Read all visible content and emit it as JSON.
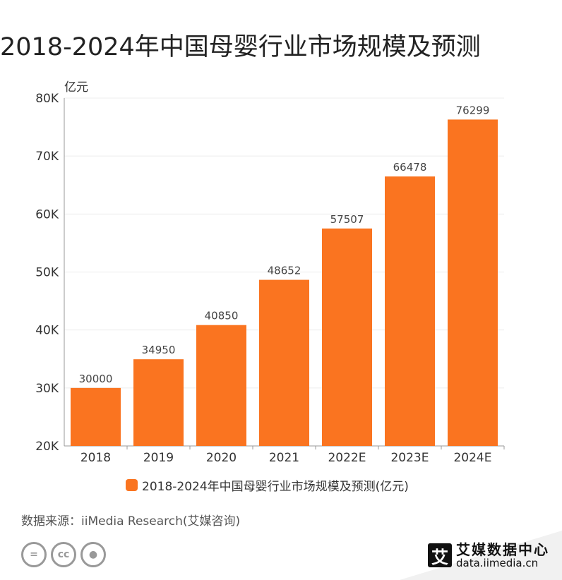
{
  "title": "2018-2024年中国母婴行业市场规模及预测",
  "source": "数据来源：iiMedia Research(艾媒咨询)",
  "logo": {
    "mark": "艾",
    "name": "艾媒数据中心",
    "url": "data.iimedia.cn"
  },
  "colors": {
    "bar": "#fa7420",
    "grid": "#ececec",
    "axis": "#999999"
  },
  "chart_data": {
    "type": "bar",
    "categories": [
      "2018",
      "2019",
      "2020",
      "2021",
      "2022E",
      "2023E",
      "2024E"
    ],
    "series": [
      {
        "name": "2018-2024年中国母婴行业市场规模及预测(亿元)",
        "values": [
          30000,
          34950,
          40850,
          48652,
          57507,
          66478,
          76299
        ]
      }
    ],
    "data_labels": [
      "30000",
      "34950",
      "40850",
      "48652",
      "57507",
      "66478",
      "76299"
    ],
    "ylabel": "亿元",
    "ylim": [
      20000,
      80000
    ],
    "yticks": [
      20000,
      30000,
      40000,
      50000,
      60000,
      70000,
      80000
    ],
    "ytick_labels": [
      "20K",
      "30K",
      "40K",
      "50K",
      "60K",
      "70K",
      "80K"
    ],
    "grid": true,
    "legend_position": "bottom"
  }
}
